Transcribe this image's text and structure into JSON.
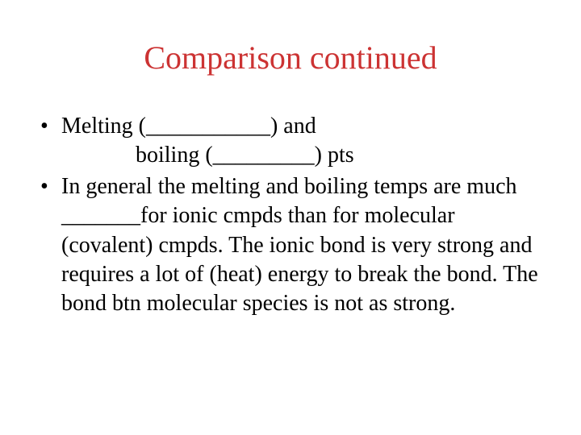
{
  "slide": {
    "title": "Comparison continued",
    "title_color": "#cc3333",
    "title_fontsize": 40,
    "body_fontsize": 28,
    "body_color": "#000000",
    "background_color": "#ffffff",
    "bullets": [
      {
        "line1": "Melting (___________) and",
        "line2": "boiling (_________) pts"
      },
      {
        "line1": "In general the melting and boiling temps are much _______for ionic cmpds than for molecular (covalent) cmpds. The ionic bond is very strong and requires a lot of (heat) energy  to break the bond. The bond btn molecular species is not as strong."
      }
    ]
  }
}
